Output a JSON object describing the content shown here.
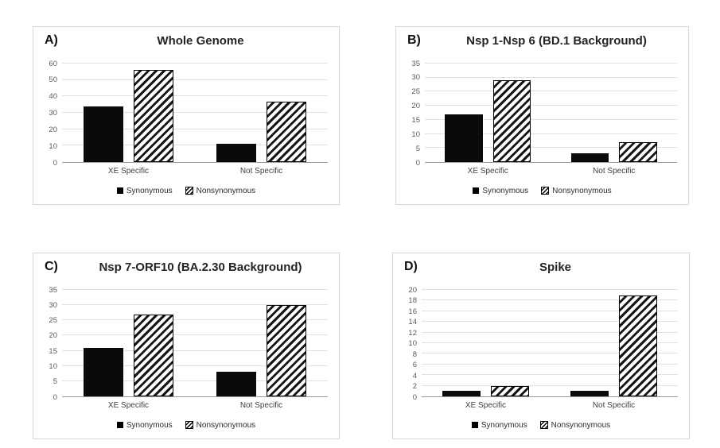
{
  "legend": {
    "synonymous_label": "Synonymous",
    "nonsynonymous_label": "Nonsynonymous"
  },
  "colors": {
    "solid_bar": "#0a0a0a",
    "hatch_stroke": "#161616",
    "gridline": "#e0e0e0",
    "axis_line": "#9b9b9b",
    "tick_text": "#595959",
    "panel_border": "#d8d8d8",
    "background": "#ffffff"
  },
  "chart_data": [
    {
      "id": "A",
      "panel_label": "A)",
      "type": "bar",
      "title": "Whole Genome",
      "categories": [
        "XE Specific",
        "Not Specific"
      ],
      "series": [
        {
          "name": "Synonymous",
          "style": "solid",
          "values": [
            34,
            11
          ]
        },
        {
          "name": "Nonsynonymous",
          "style": "hatched",
          "values": [
            56,
            37
          ]
        }
      ],
      "ylim": [
        0,
        60
      ],
      "yticks": [
        0,
        10,
        20,
        30,
        40,
        50,
        60
      ],
      "grid": true,
      "legend_position": "bottom"
    },
    {
      "id": "B",
      "panel_label": "B)",
      "type": "bar",
      "title": "Nsp 1-Nsp 6 (BD.1 Background)",
      "categories": [
        "XE Specific",
        "Not Specific"
      ],
      "series": [
        {
          "name": "Synonymous",
          "style": "solid",
          "values": [
            17,
            3
          ]
        },
        {
          "name": "Nonsynonymous",
          "style": "hatched",
          "values": [
            29,
            7
          ]
        }
      ],
      "ylim": [
        0,
        35
      ],
      "yticks": [
        0,
        5,
        10,
        15,
        20,
        25,
        30,
        35
      ],
      "grid": true,
      "legend_position": "bottom"
    },
    {
      "id": "C",
      "panel_label": "C)",
      "type": "bar",
      "title": "Nsp 7-ORF10 (BA.2.30 Background)",
      "categories": [
        "XE Specific",
        "Not Specific"
      ],
      "series": [
        {
          "name": "Synonymous",
          "style": "solid",
          "values": [
            16,
            8
          ]
        },
        {
          "name": "Nonsynonymous",
          "style": "hatched",
          "values": [
            27,
            30
          ]
        }
      ],
      "ylim": [
        0,
        35
      ],
      "yticks": [
        0,
        5,
        10,
        15,
        20,
        25,
        30,
        35
      ],
      "grid": true,
      "legend_position": "bottom"
    },
    {
      "id": "D",
      "panel_label": "D)",
      "type": "bar",
      "title": "Spike",
      "categories": [
        "XE Specific",
        "Not Specific"
      ],
      "series": [
        {
          "name": "Synonymous",
          "style": "solid",
          "values": [
            1,
            1
          ]
        },
        {
          "name": "Nonsynonymous",
          "style": "hatched",
          "values": [
            2,
            19
          ]
        }
      ],
      "ylim": [
        0,
        20
      ],
      "yticks": [
        0,
        2,
        4,
        6,
        8,
        10,
        12,
        14,
        16,
        18,
        20
      ],
      "grid": true,
      "legend_position": "bottom"
    }
  ]
}
